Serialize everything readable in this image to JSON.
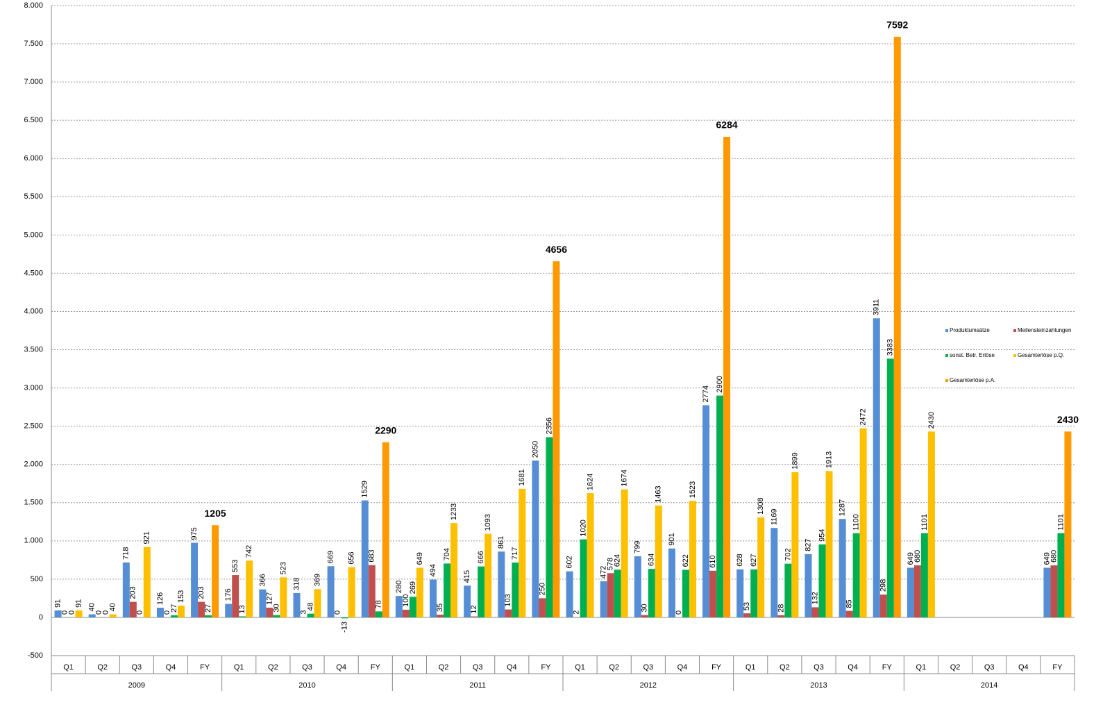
{
  "chart_data": {
    "type": "bar",
    "categories": [
      "Q1",
      "Q2",
      "Q3",
      "Q4",
      "FY",
      "Q1",
      "Q2",
      "Q3",
      "Q4",
      "FY",
      "Q1",
      "Q2",
      "Q3",
      "Q4",
      "FY",
      "Q1",
      "Q2",
      "Q3",
      "Q4",
      "FY",
      "Q1",
      "Q2",
      "Q3",
      "Q4",
      "FY",
      "Q1",
      "Q2",
      "Q3",
      "Q4",
      "FY"
    ],
    "years": [
      "2009",
      "2010",
      "2011",
      "2012",
      "2013",
      "2014"
    ],
    "series": [
      {
        "name": "Produktumsätze",
        "color": "#558ed5",
        "values": [
          91,
          40,
          718,
          126,
          975,
          176,
          366,
          318,
          669,
          1529,
          280,
          494,
          415,
          861,
          2050,
          602,
          472,
          799,
          901,
          2774,
          628,
          1169,
          827,
          1287,
          3911,
          649,
          null,
          null,
          null,
          649
        ]
      },
      {
        "name": "Meilensteinzahlungen",
        "color": "#c0504d",
        "values": [
          0,
          0,
          203,
          0,
          203,
          553,
          127,
          3,
          0,
          683,
          100,
          35,
          12,
          103,
          250,
          2,
          578,
          30,
          0,
          610,
          53,
          28,
          132,
          85,
          298,
          680,
          null,
          null,
          null,
          680
        ]
      },
      {
        "name": "sonst. Betr. Erlöse",
        "color": "#00b050",
        "values": [
          0,
          0,
          0,
          27,
          27,
          13,
          30,
          48,
          -13,
          78,
          269,
          704,
          666,
          717,
          2356,
          1020,
          624,
          634,
          622,
          2900,
          627,
          702,
          954,
          1100,
          3383,
          1101,
          null,
          null,
          null,
          1101
        ]
      },
      {
        "name": "Gesamterlöse p.Q.",
        "color": "#ffc000",
        "values": [
          91,
          40,
          921,
          153,
          null,
          742,
          523,
          369,
          656,
          null,
          649,
          1233,
          1093,
          1681,
          null,
          1624,
          1674,
          1463,
          1523,
          null,
          1308,
          1899,
          1913,
          2472,
          null,
          2430,
          null,
          null,
          null,
          null
        ]
      },
      {
        "name": "Gesamterlöse p.A.",
        "color": "#ff9900",
        "values": [
          null,
          null,
          null,
          null,
          1205,
          null,
          null,
          null,
          null,
          2290,
          null,
          null,
          null,
          null,
          4656,
          null,
          null,
          null,
          null,
          6284,
          null,
          null,
          null,
          null,
          7592,
          null,
          null,
          null,
          null,
          2430
        ]
      }
    ],
    "ylim": [
      -500,
      8000
    ],
    "yticks": [
      -500,
      0,
      500,
      {
        "value": 1000,
        "label": "1.000"
      },
      {
        "value": 1500,
        "label": "1.500"
      },
      {
        "value": 2000,
        "label": "2.000"
      },
      {
        "value": 2500,
        "label": "2.500"
      },
      {
        "value": 3000,
        "label": "3.000"
      },
      {
        "value": 3500,
        "label": "3.500"
      },
      {
        "value": 4000,
        "label": "4.000"
      },
      {
        "value": 4500,
        "label": "4.500"
      },
      {
        "value": 5000,
        "label": "5.000"
      },
      {
        "value": 5500,
        "label": "5.500"
      },
      {
        "value": 6000,
        "label": "6.000"
      },
      {
        "value": 6500,
        "label": "6.500"
      },
      {
        "value": 7000,
        "label": "7.000"
      },
      {
        "value": 7500,
        "label": "7.500"
      },
      {
        "value": 8000,
        "label": "8.000"
      }
    ],
    "grid": true,
    "legend": "right"
  }
}
